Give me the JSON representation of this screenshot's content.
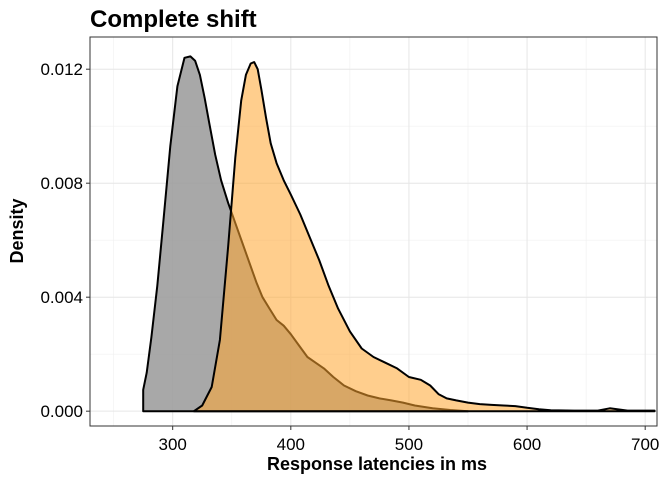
{
  "chart_data": {
    "type": "area",
    "title": "Complete shift",
    "xlabel": "Response latencies in ms",
    "ylabel": "Density",
    "xlim": [
      230,
      710
    ],
    "ylim": [
      -0.00052,
      0.01313
    ],
    "x_ticks": [
      300,
      400,
      500,
      600,
      700
    ],
    "x_tick_labels": [
      "300",
      "400",
      "500",
      "600",
      "700"
    ],
    "y_ticks": [
      0.0,
      0.004,
      0.008,
      0.012
    ],
    "y_tick_labels": [
      "0.000",
      "0.004",
      "0.008",
      "0.012"
    ],
    "grid": true,
    "legend": "none",
    "series": [
      {
        "fill": "#999999",
        "fill_opacity": 0.85,
        "x": [
          275,
          278,
          282,
          287,
          292,
          298,
          304,
          310,
          315,
          319,
          323,
          327,
          331,
          336,
          341,
          347,
          353,
          359,
          365,
          371,
          376,
          382,
          388,
          394,
          400,
          407,
          414,
          421,
          428,
          436,
          445,
          455,
          465,
          475,
          485,
          495,
          505,
          520,
          535,
          550
        ],
        "values": [
          0.00075,
          0.00135,
          0.0026,
          0.0044,
          0.0066,
          0.0093,
          0.0114,
          0.0124,
          0.01245,
          0.0123,
          0.0118,
          0.011,
          0.0101,
          0.009,
          0.0081,
          0.0073,
          0.0066,
          0.0059,
          0.0052,
          0.0045,
          0.004,
          0.0036,
          0.0032,
          0.003,
          0.0027,
          0.0023,
          0.0019,
          0.0017,
          0.0015,
          0.0012,
          0.0009,
          0.0007,
          0.00055,
          0.00045,
          0.00038,
          0.0003,
          0.0002,
          0.0001,
          4e-05,
          0.0
        ]
      },
      {
        "fill": "#ffa630",
        "fill_opacity": 0.55,
        "x": [
          318,
          325,
          333,
          340,
          347,
          353,
          358,
          362,
          366,
          369,
          372,
          375,
          379,
          383,
          388,
          394,
          400,
          408,
          416,
          424,
          432,
          440,
          450,
          460,
          470,
          480,
          490,
          500,
          510,
          518,
          525,
          532,
          540,
          550,
          560,
          570,
          580,
          590,
          600,
          610,
          620,
          640,
          660,
          670,
          685,
          700,
          708
        ],
        "values": [
          0.0,
          0.0002,
          0.00085,
          0.0025,
          0.0058,
          0.0089,
          0.0109,
          0.0118,
          0.0122,
          0.01225,
          0.012,
          0.0113,
          0.0103,
          0.0094,
          0.0087,
          0.0081,
          0.0076,
          0.0069,
          0.0061,
          0.0053,
          0.0044,
          0.0036,
          0.0028,
          0.0022,
          0.0019,
          0.0017,
          0.0015,
          0.0012,
          0.0011,
          0.0009,
          0.0006,
          0.00045,
          0.00038,
          0.0003,
          0.00025,
          0.00022,
          0.0002,
          0.00018,
          0.00012,
          7e-05,
          3e-05,
          2e-05,
          2e-05,
          0.0001,
          2e-05,
          2e-05,
          2e-05
        ]
      }
    ]
  }
}
